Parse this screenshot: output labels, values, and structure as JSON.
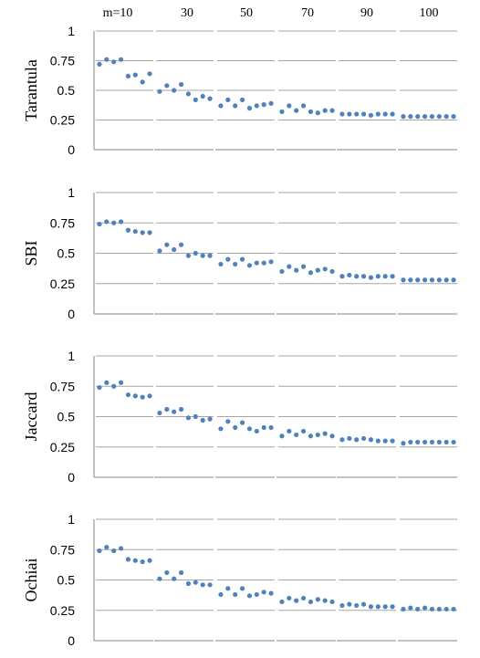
{
  "chart_data": {
    "type": "scatter",
    "column_labels": [
      "m=10",
      "30",
      "50",
      "70",
      "90",
      "100"
    ],
    "y_ticks": [
      "1",
      "0.75",
      "0.5",
      "0.25",
      "0"
    ],
    "ylim": [
      0,
      1
    ],
    "grid": true,
    "point_color": "#4f81bd",
    "panels": [
      {
        "name": "Tarantula",
        "groups": [
          [
            0.72,
            0.76,
            0.74,
            0.76,
            0.62,
            0.63,
            0.57,
            0.64
          ],
          [
            0.49,
            0.54,
            0.5,
            0.55,
            0.47,
            0.42,
            0.45,
            0.43
          ],
          [
            0.37,
            0.42,
            0.37,
            0.42,
            0.35,
            0.37,
            0.38,
            0.39
          ],
          [
            0.32,
            0.37,
            0.33,
            0.37,
            0.32,
            0.31,
            0.33,
            0.33
          ],
          [
            0.3,
            0.3,
            0.3,
            0.3,
            0.29,
            0.3,
            0.3,
            0.3
          ],
          [
            0.28,
            0.28,
            0.28,
            0.28,
            0.28,
            0.28,
            0.28,
            0.28
          ]
        ]
      },
      {
        "name": "SBI",
        "groups": [
          [
            0.74,
            0.76,
            0.75,
            0.76,
            0.69,
            0.68,
            0.67,
            0.67
          ],
          [
            0.52,
            0.57,
            0.53,
            0.57,
            0.48,
            0.5,
            0.48,
            0.48
          ],
          [
            0.41,
            0.45,
            0.41,
            0.45,
            0.4,
            0.42,
            0.42,
            0.43
          ],
          [
            0.35,
            0.39,
            0.36,
            0.39,
            0.34,
            0.36,
            0.37,
            0.35
          ],
          [
            0.31,
            0.32,
            0.31,
            0.31,
            0.3,
            0.31,
            0.31,
            0.31
          ],
          [
            0.28,
            0.28,
            0.28,
            0.28,
            0.28,
            0.28,
            0.28,
            0.28
          ]
        ]
      },
      {
        "name": "Jaccard",
        "groups": [
          [
            0.74,
            0.78,
            0.75,
            0.78,
            0.68,
            0.67,
            0.66,
            0.67
          ],
          [
            0.53,
            0.56,
            0.54,
            0.56,
            0.49,
            0.5,
            0.47,
            0.48
          ],
          [
            0.4,
            0.46,
            0.41,
            0.45,
            0.4,
            0.38,
            0.41,
            0.41
          ],
          [
            0.34,
            0.38,
            0.35,
            0.38,
            0.34,
            0.35,
            0.36,
            0.34
          ],
          [
            0.31,
            0.32,
            0.31,
            0.32,
            0.31,
            0.3,
            0.3,
            0.3
          ],
          [
            0.28,
            0.29,
            0.29,
            0.29,
            0.29,
            0.29,
            0.29,
            0.29
          ]
        ]
      },
      {
        "name": "Ochiai",
        "groups": [
          [
            0.74,
            0.77,
            0.74,
            0.76,
            0.67,
            0.66,
            0.65,
            0.66
          ],
          [
            0.51,
            0.56,
            0.51,
            0.56,
            0.47,
            0.48,
            0.46,
            0.46
          ],
          [
            0.38,
            0.43,
            0.38,
            0.43,
            0.37,
            0.38,
            0.4,
            0.39
          ],
          [
            0.32,
            0.35,
            0.33,
            0.35,
            0.32,
            0.34,
            0.33,
            0.32
          ],
          [
            0.29,
            0.3,
            0.29,
            0.3,
            0.28,
            0.28,
            0.28,
            0.28
          ],
          [
            0.26,
            0.27,
            0.26,
            0.27,
            0.26,
            0.26,
            0.26,
            0.26
          ]
        ]
      }
    ]
  }
}
